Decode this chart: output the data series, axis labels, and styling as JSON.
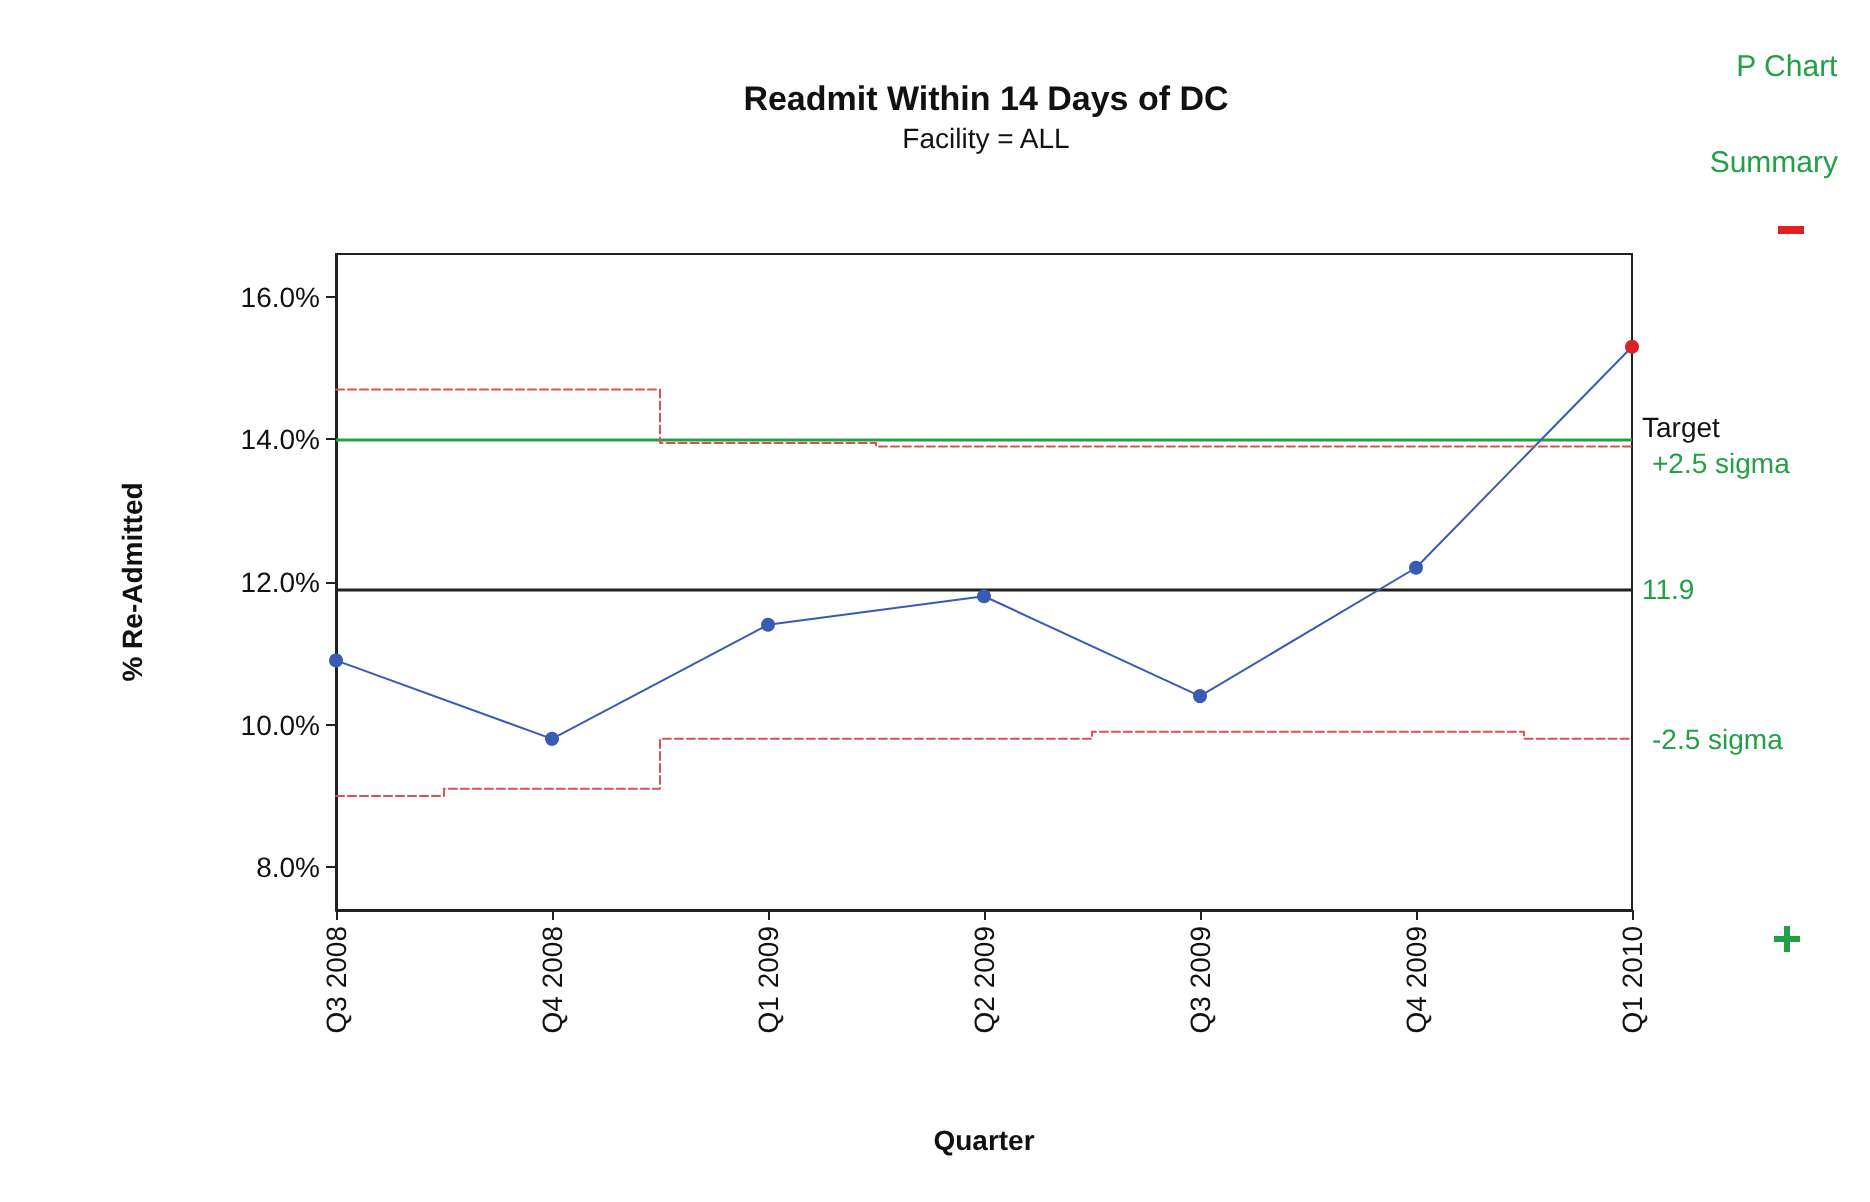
{
  "chart_data": {
    "type": "line",
    "title": "Readmit Within 14 Days of DC",
    "subtitle": "Facility = ALL",
    "xlabel": "Quarter",
    "ylabel": "% Re-Admitted",
    "categories": [
      "Q3 2008",
      "Q4 2008",
      "Q1 2009",
      "Q2 2009",
      "Q3 2009",
      "Q4 2009",
      "Q1 2010"
    ],
    "series": [
      {
        "color": "#3a5bb5",
        "colors": [
          "#3a5bb5",
          "#3a5bb5",
          "#3a5bb5",
          "#3a5bb5",
          "#3a5bb5",
          "#3a5bb5",
          "#e02020"
        ],
        "values": [
          10.9,
          9.8,
          11.4,
          11.8,
          10.4,
          12.2,
          15.3
        ]
      },
      {
        "type": "step",
        "name": "+2.5 sigma",
        "color": "#e05050",
        "line_style": "dashed",
        "marker": "none",
        "values": [
          14.7,
          14.7,
          13.95,
          13.9,
          13.9,
          13.9,
          13.9
        ]
      },
      {
        "type": "step",
        "name": "-2.5 sigma",
        "color": "#e05050",
        "line_style": "dashed",
        "marker": "none",
        "values": [
          9.0,
          9.1,
          9.8,
          9.8,
          9.9,
          9.9,
          9.8
        ]
      }
    ],
    "ylim": [
      7.4,
      16.6
    ],
    "yticks": [
      {
        "value": 8,
        "label": "8.0%"
      },
      {
        "value": 10,
        "label": "10.0%"
      },
      {
        "value": 12,
        "label": "12.0%"
      },
      {
        "value": 14,
        "label": "14.0%"
      },
      {
        "value": 16,
        "label": "16.0%"
      }
    ],
    "ref_lines": [
      {
        "axis": "y",
        "value": 14,
        "label": "Target",
        "color": "#22a045"
      },
      {
        "axis": "y",
        "value": 11.9,
        "label": "11.9",
        "color": "#222222"
      }
    ],
    "annotations": [
      "P Chart",
      "Summary"
    ],
    "marker": "circle",
    "line_style": "solid",
    "grid": false,
    "legend": false
  }
}
